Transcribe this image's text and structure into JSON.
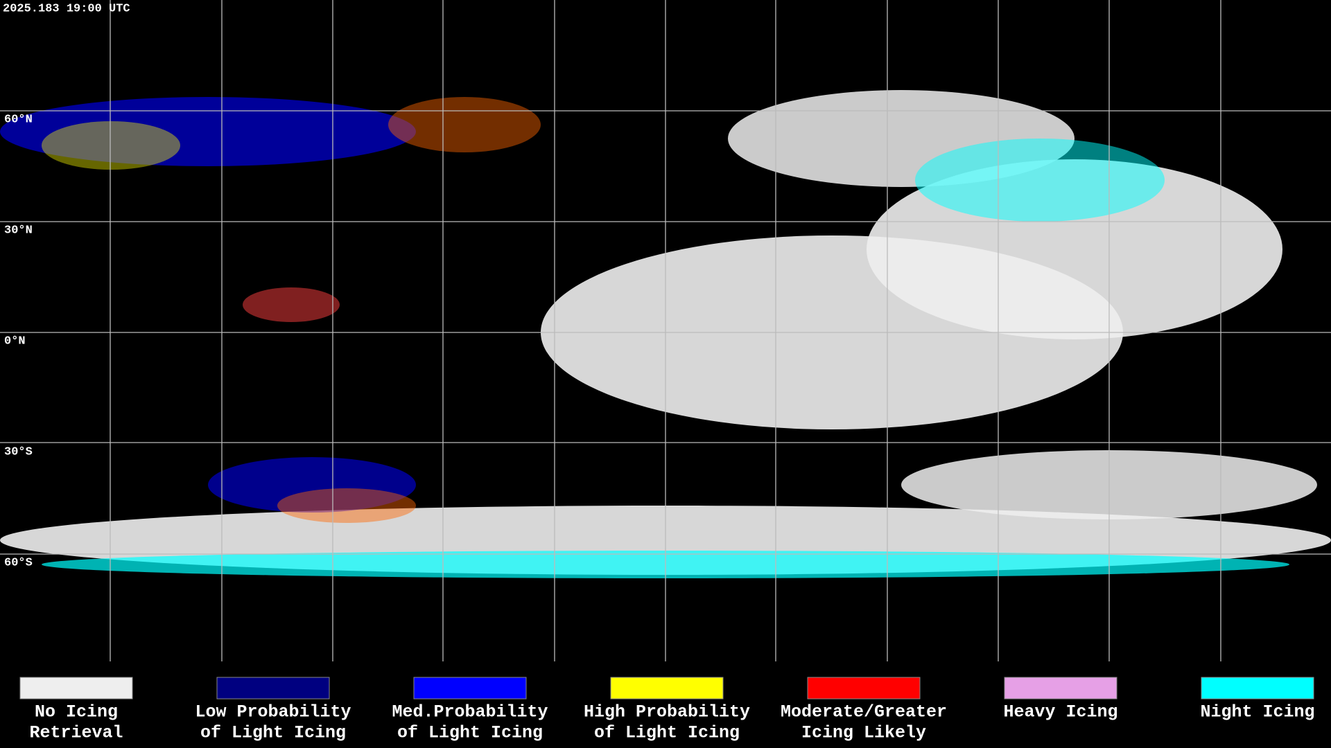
{
  "header": {
    "timestamp": "2025.183 19:00 UTC"
  },
  "map": {
    "latitude_labels": [
      "60°N",
      "30°N",
      "0°N",
      "30°S",
      "60°S"
    ]
  },
  "legend": {
    "items": [
      {
        "line1": "No Icing",
        "line2": "Retrieval",
        "color": "#eeeeee"
      },
      {
        "line1": "Low Probability",
        "line2": "of Light Icing",
        "color": "#000080"
      },
      {
        "line1": "Med.Probability",
        "line2": "of Light Icing",
        "color": "#0000ff"
      },
      {
        "line1": "High Probability",
        "line2": "of Light Icing",
        "color": "#ffff00"
      },
      {
        "line1": "Moderate/Greater",
        "line2": "Icing Likely",
        "color": "#ff0000"
      },
      {
        "line1": "Heavy Icing",
        "line2": "",
        "color": "#e6a0e6"
      },
      {
        "line1": "Night Icing",
        "line2": "",
        "color": "#00ffff"
      }
    ]
  }
}
